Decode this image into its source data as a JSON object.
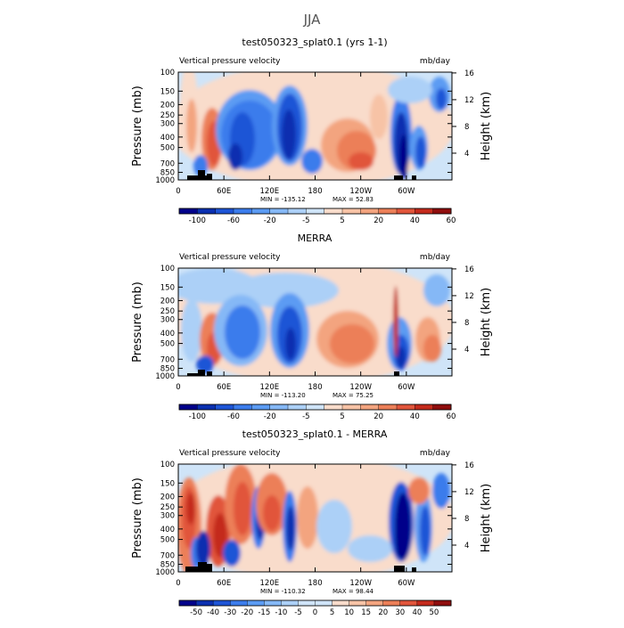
{
  "figure": {
    "title": "JJA"
  },
  "chart_data": [
    {
      "type": "heatmap",
      "title": "test050323_splat0.1 (yrs 1-1)",
      "subtitle_left": "Vertical pressure velocity",
      "subtitle_right": "mb/day",
      "ylabel": "Pressure (mb)",
      "ylabel_right": "Height (km)",
      "x_ticks": [
        "0",
        "60E",
        "120E",
        "180",
        "120W",
        "60W"
      ],
      "y_ticks": [
        "100",
        "150",
        "200",
        "250",
        "300",
        "400",
        "500",
        "700",
        "850",
        "1000"
      ],
      "y_ticks_right": [
        "16",
        "12",
        "8",
        "4"
      ],
      "min_label": "MIN = -135.12",
      "max_label": "MAX = 52.83",
      "colorbar_labels": [
        "-100",
        "-60",
        "-20",
        "-5",
        "5",
        "20",
        "40",
        "60"
      ],
      "colorbar_levels": [
        -120,
        -100,
        -80,
        -60,
        -40,
        -20,
        -10,
        -5,
        0,
        5,
        10,
        20,
        30,
        40,
        50,
        60
      ]
    },
    {
      "type": "heatmap",
      "title": "MERRA",
      "subtitle_left": "Vertical pressure velocity",
      "subtitle_right": "mb/day",
      "ylabel": "Pressure (mb)",
      "ylabel_right": "Height (km)",
      "x_ticks": [
        "0",
        "60E",
        "120E",
        "180",
        "120W",
        "60W"
      ],
      "y_ticks": [
        "100",
        "150",
        "200",
        "250",
        "300",
        "400",
        "500",
        "700",
        "850",
        "1000"
      ],
      "y_ticks_right": [
        "16",
        "12",
        "8",
        "4"
      ],
      "min_label": "MIN = -113.20",
      "max_label": "MAX = 75.25",
      "colorbar_labels": [
        "-100",
        "-60",
        "-20",
        "-5",
        "5",
        "20",
        "40",
        "60"
      ],
      "colorbar_levels": [
        -120,
        -100,
        -80,
        -60,
        -40,
        -20,
        -10,
        -5,
        0,
        5,
        10,
        20,
        30,
        40,
        50,
        60
      ]
    },
    {
      "type": "heatmap",
      "title": "test050323_splat0.1 - MERRA",
      "subtitle_left": "Vertical pressure velocity",
      "subtitle_right": "mb/day",
      "ylabel": "Pressure (mb)",
      "ylabel_right": "Height (km)",
      "x_ticks": [
        "0",
        "60E",
        "120E",
        "180",
        "120W",
        "60W"
      ],
      "y_ticks": [
        "100",
        "150",
        "200",
        "250",
        "300",
        "400",
        "500",
        "700",
        "850",
        "1000"
      ],
      "y_ticks_right": [
        "16",
        "12",
        "8",
        "4"
      ],
      "min_label": "MIN = -110.32",
      "max_label": "MAX = 98.44",
      "colorbar_labels": [
        "-50",
        "-40",
        "-30",
        "-20",
        "-15",
        "-10",
        "-5",
        "0",
        "5",
        "10",
        "15",
        "20",
        "30",
        "40",
        "50"
      ],
      "colorbar_levels": [
        -60,
        -50,
        -40,
        -30,
        -20,
        -15,
        -10,
        -5,
        0,
        5,
        10,
        15,
        20,
        30,
        40,
        50,
        60
      ]
    }
  ],
  "palette": [
    "#00008a",
    "#0a2fb0",
    "#1d54d6",
    "#3b7cec",
    "#5b9bf3",
    "#85b8f6",
    "#acd0f7",
    "#cfe4f8",
    "#f9dccb",
    "#f7c3a6",
    "#f3a47f",
    "#ec7f58",
    "#e1553b",
    "#c42a1c",
    "#8f0d0d"
  ]
}
